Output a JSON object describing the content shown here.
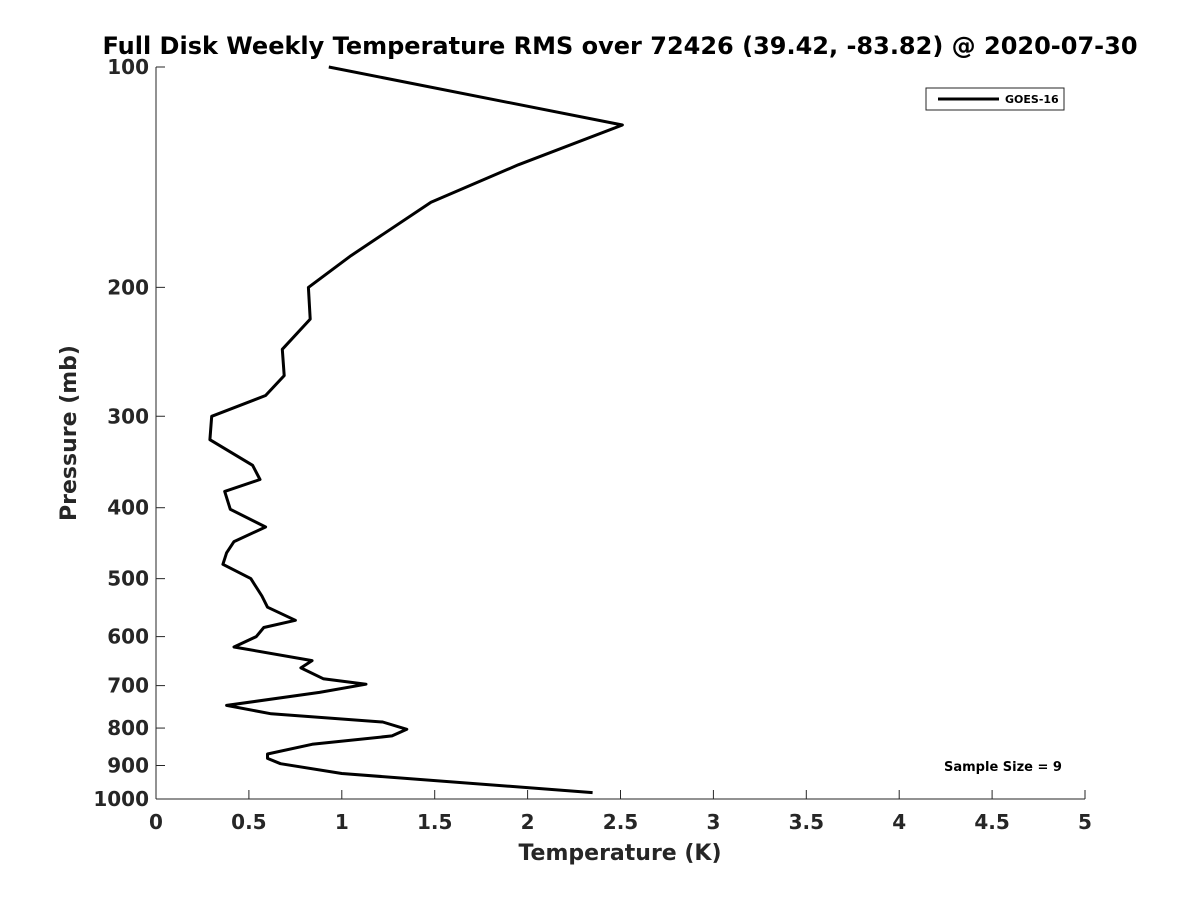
{
  "chart_data": {
    "type": "line",
    "title": "Full Disk Weekly Temperature RMS over 72426 (39.42, -83.82) @ 2020-07-30",
    "xlabel": "Temperature (K)",
    "ylabel": "Pressure (mb)",
    "xlim": [
      0,
      5
    ],
    "ylim": [
      1000,
      100
    ],
    "y_scale": "log",
    "y_reversed": true,
    "xticks": [
      0,
      0.5,
      1,
      1.5,
      2,
      2.5,
      3,
      3.5,
      4,
      4.5,
      5
    ],
    "xtick_labels": [
      "0",
      "0.5",
      "1",
      "1.5",
      "2",
      "2.5",
      "3",
      "3.5",
      "4",
      "4.5",
      "5"
    ],
    "yticks": [
      100,
      200,
      300,
      400,
      500,
      600,
      700,
      800,
      900,
      1000
    ],
    "ytick_labels": [
      "100",
      "200",
      "300",
      "400",
      "500",
      "600",
      "700",
      "800",
      "900",
      "1000"
    ],
    "grid": false,
    "legend_position": "top-right",
    "annotation": "Sample Size = 9",
    "series": [
      {
        "name": "GOES-16",
        "color": "#000000",
        "points": [
          [
            0.93,
            100
          ],
          [
            2.51,
            120
          ],
          [
            1.95,
            136
          ],
          [
            1.48,
            153
          ],
          [
            1.05,
            181
          ],
          [
            0.82,
            200
          ],
          [
            0.83,
            221
          ],
          [
            0.68,
            243
          ],
          [
            0.69,
            264
          ],
          [
            0.59,
            281
          ],
          [
            0.3,
            300
          ],
          [
            0.29,
            323
          ],
          [
            0.52,
            350
          ],
          [
            0.56,
            366
          ],
          [
            0.37,
            380
          ],
          [
            0.4,
            402
          ],
          [
            0.59,
            425
          ],
          [
            0.42,
            445
          ],
          [
            0.38,
            461
          ],
          [
            0.36,
            478
          ],
          [
            0.51,
            500
          ],
          [
            0.57,
            528
          ],
          [
            0.6,
            547
          ],
          [
            0.75,
            570
          ],
          [
            0.58,
            583
          ],
          [
            0.54,
            600
          ],
          [
            0.42,
            620
          ],
          [
            0.84,
            647
          ],
          [
            0.78,
            662
          ],
          [
            0.9,
            685
          ],
          [
            1.13,
            697
          ],
          [
            0.88,
            715
          ],
          [
            0.38,
            745
          ],
          [
            0.62,
            765
          ],
          [
            1.22,
            785
          ],
          [
            1.35,
            803
          ],
          [
            1.27,
            820
          ],
          [
            0.84,
            842
          ],
          [
            0.6,
            868
          ],
          [
            0.6,
            880
          ],
          [
            0.67,
            895
          ],
          [
            1.0,
            923
          ],
          [
            2.35,
            980
          ]
        ]
      }
    ]
  }
}
